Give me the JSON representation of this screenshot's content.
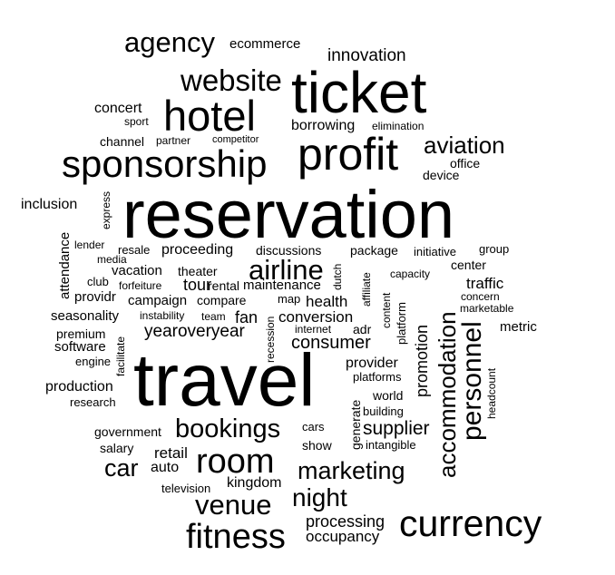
{
  "colors": {
    "background": "#ffffff",
    "text": "#000000"
  },
  "words": [
    "agency",
    "ecommerce",
    "innovation",
    "ticket",
    "website",
    "hotel",
    "concert",
    "sport",
    "borrowing",
    "elimination",
    "channel",
    "partner",
    "competitor",
    "profit",
    "aviation",
    "sponsorship",
    "office",
    "device",
    "reservation",
    "inclusion",
    "express",
    "attendance",
    "lender",
    "resale",
    "proceeding",
    "discussions",
    "package",
    "initiative",
    "group",
    "media",
    "center",
    "airline",
    "vacation",
    "theater",
    "dutch",
    "affiliate",
    "capacity",
    "club",
    "forfeiture",
    "tour",
    "rental",
    "maintenance",
    "traffic",
    "providr",
    "campaign",
    "compare",
    "map",
    "health",
    "content",
    "accommodation",
    "concern",
    "seasonality",
    "instability",
    "team",
    "fan",
    "conversion",
    "marketable",
    "personnel",
    "premium",
    "yearoveryear",
    "recession",
    "internet",
    "adr",
    "platform",
    "promotion",
    "metric",
    "software",
    "facilitate",
    "consumer",
    "engine",
    "travel",
    "provider",
    "production",
    "platforms",
    "headcount",
    "research",
    "world",
    "generate",
    "building",
    "government",
    "cars",
    "bookings",
    "supplier",
    "salary",
    "retail",
    "show",
    "intangible",
    "car",
    "auto",
    "room",
    "marketing",
    "kingdom",
    "television",
    "night",
    "venue",
    "processing",
    "currency",
    "fitness",
    "occupancy"
  ]
}
